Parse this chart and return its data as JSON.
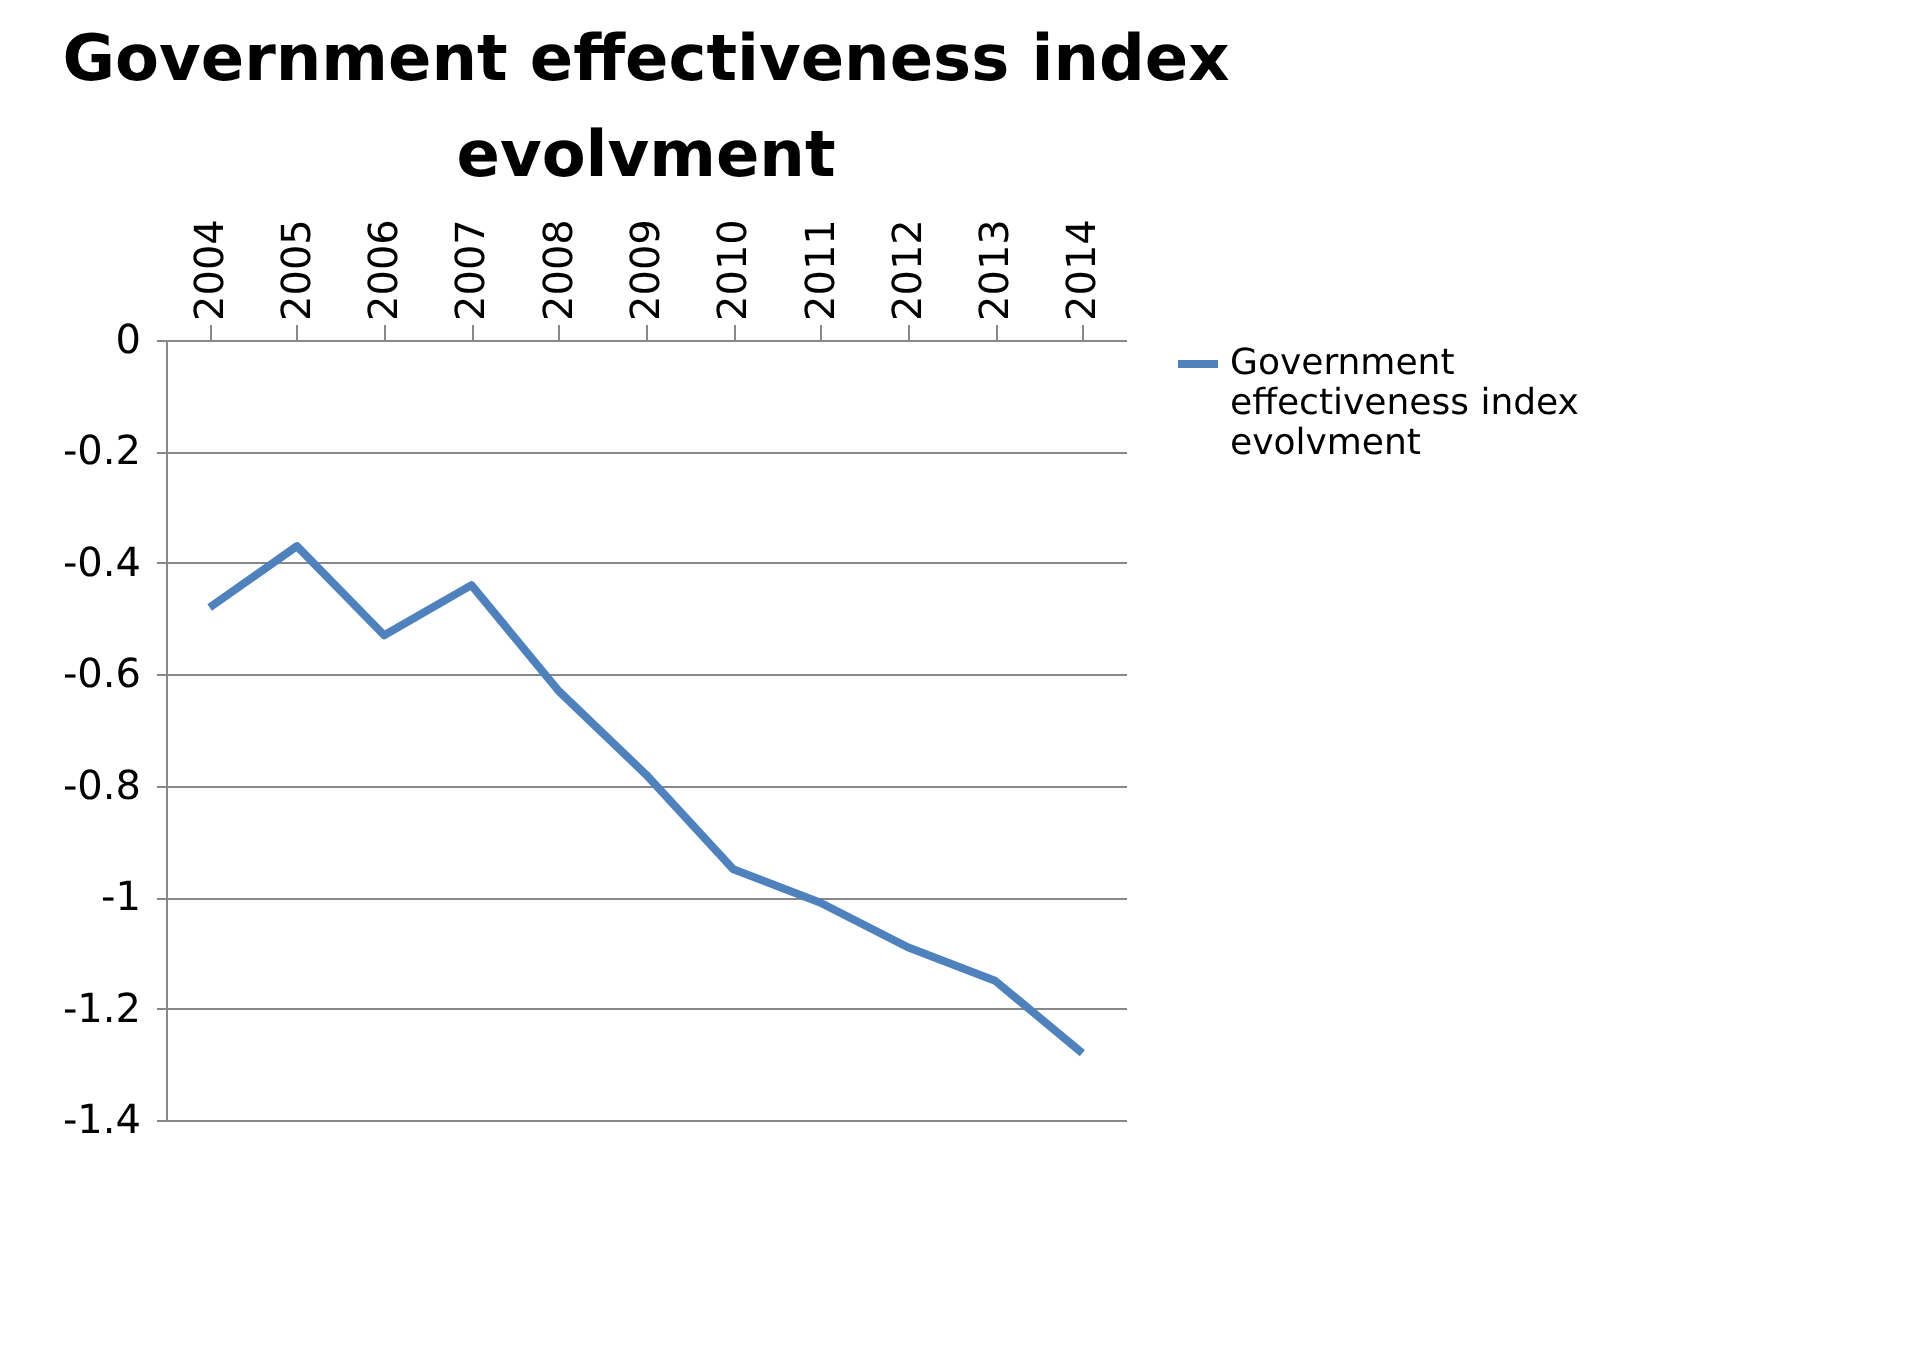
{
  "chart_data": {
    "type": "line",
    "title": "Government effectiveness index evolvment",
    "categories": [
      "2004",
      "2005",
      "2006",
      "2007",
      "2008",
      "2009",
      "2010",
      "2011",
      "2012",
      "2013",
      "2014"
    ],
    "series": [
      {
        "name": "Government effectiveness index evolvment",
        "color": "#4f81bd",
        "values": [
          -0.48,
          -0.37,
          -0.53,
          -0.44,
          -0.63,
          -0.78,
          -0.95,
          -1.01,
          -1.09,
          -1.15,
          -1.28
        ]
      }
    ],
    "ylim": [
      -1.4,
      0
    ],
    "yticks": [
      0,
      -0.2,
      -0.4,
      -0.6,
      -0.8,
      -1,
      -1.2,
      -1.4
    ],
    "grid": "y",
    "legend": "right",
    "marker": "none",
    "line_style": "solid"
  }
}
